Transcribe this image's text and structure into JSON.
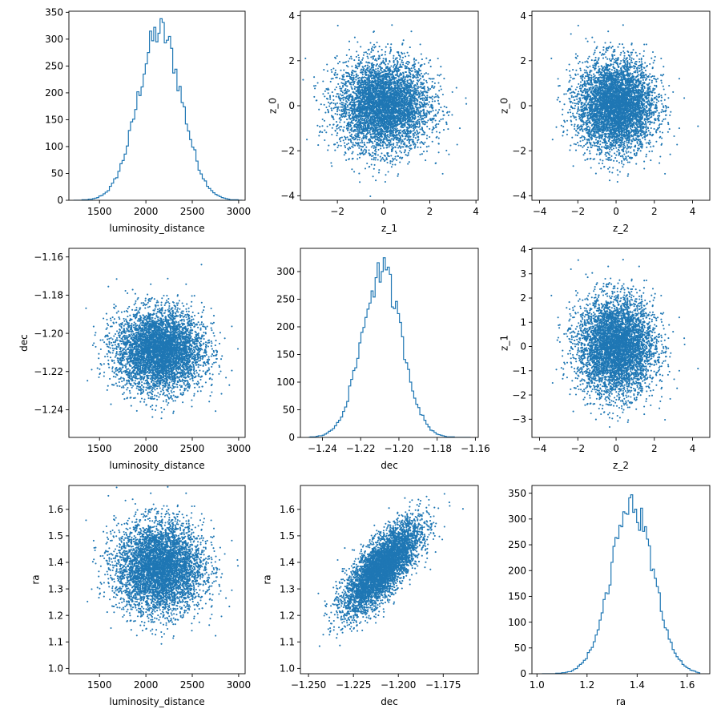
{
  "chart_data": [
    {
      "id": "p00",
      "type": "histogram",
      "xlabel": "luminosity_distance",
      "ylabel": "",
      "xlim": [
        1170,
        3070
      ],
      "ylim": [
        0,
        352
      ],
      "xticks": [
        1500,
        2000,
        2500,
        3000
      ],
      "xtick_labels": [
        "1500",
        "2000",
        "2500",
        "3000"
      ],
      "yticks": [
        0,
        50,
        100,
        150,
        200,
        250,
        300,
        350
      ],
      "ytick_labels": [
        "0",
        "50",
        "100",
        "150",
        "200",
        "250",
        "300",
        "350"
      ],
      "hist": {
        "bins": 80,
        "mean": 2150,
        "sd": 235,
        "peak": 338,
        "range": [
          1220,
          3040
        ]
      }
    },
    {
      "id": "p01",
      "type": "scatter",
      "xlabel": "z_1",
      "ylabel": "z_0",
      "xlim": [
        -3.6,
        4.1
      ],
      "ylim": [
        -4.2,
        4.2
      ],
      "xticks": [
        -2,
        0,
        2,
        4
      ],
      "xtick_labels": [
        "−2",
        "0",
        "2",
        "4"
      ],
      "yticks": [
        -4,
        -2,
        0,
        2,
        4
      ],
      "ytick_labels": [
        "−4",
        "−2",
        "0",
        "2",
        "4"
      ],
      "scatter": {
        "n": 5000,
        "mean_x": 0,
        "sd_x": 1,
        "mean_y": 0,
        "sd_y": 1,
        "rho": 0
      }
    },
    {
      "id": "p02",
      "type": "scatter",
      "xlabel": "z_2",
      "ylabel": "z_0",
      "xlim": [
        -4.4,
        4.9
      ],
      "ylim": [
        -4.2,
        4.2
      ],
      "xticks": [
        -4,
        -2,
        0,
        2,
        4
      ],
      "xtick_labels": [
        "−4",
        "−2",
        "0",
        "2",
        "4"
      ],
      "yticks": [
        -4,
        -2,
        0,
        2,
        4
      ],
      "ytick_labels": [
        "−4",
        "−2",
        "0",
        "2",
        "4"
      ],
      "scatter": {
        "n": 5000,
        "mean_x": 0,
        "sd_x": 1,
        "mean_y": 0,
        "sd_y": 1,
        "rho": 0
      }
    },
    {
      "id": "p10",
      "type": "scatter",
      "xlabel": "luminosity_distance",
      "ylabel": "dec",
      "xlim": [
        1170,
        3070
      ],
      "ylim": [
        -1.2545,
        -1.1555
      ],
      "xticks": [
        1500,
        2000,
        2500,
        3000
      ],
      "xtick_labels": [
        "1500",
        "2000",
        "2500",
        "3000"
      ],
      "yticks": [
        -1.24,
        -1.22,
        -1.2,
        -1.18,
        -1.16
      ],
      "ytick_labels": [
        "−1.24",
        "−1.22",
        "−1.20",
        "−1.18",
        "−1.16"
      ],
      "scatter": {
        "n": 5000,
        "mean_x": 2150,
        "sd_x": 235,
        "mean_y": -1.209,
        "sd_y": 0.0105,
        "rho": 0
      }
    },
    {
      "id": "p11",
      "type": "histogram",
      "xlabel": "dec",
      "ylabel": "",
      "xlim": [
        -1.2515,
        -1.1585
      ],
      "ylim": [
        0,
        342
      ],
      "xticks": [
        -1.24,
        -1.22,
        -1.2,
        -1.18,
        -1.16
      ],
      "xtick_labels": [
        "−1.24",
        "−1.22",
        "−1.20",
        "−1.18",
        "−1.16"
      ],
      "yticks": [
        0,
        50,
        100,
        150,
        200,
        250,
        300
      ],
      "ytick_labels": [
        "0",
        "50",
        "100",
        "150",
        "200",
        "250",
        "300"
      ],
      "hist": {
        "bins": 80,
        "mean": -1.209,
        "sd": 0.0105,
        "peak": 325,
        "range": [
          -1.2475,
          -1.1625
        ]
      }
    },
    {
      "id": "p12",
      "type": "scatter",
      "xlabel": "z_2",
      "ylabel": "z_1",
      "xlim": [
        -4.4,
        4.9
      ],
      "ylim": [
        -3.75,
        4.05
      ],
      "xticks": [
        -4,
        -2,
        0,
        2,
        4
      ],
      "xtick_labels": [
        "−4",
        "−2",
        "0",
        "2",
        "4"
      ],
      "yticks": [
        -3,
        -2,
        -1,
        0,
        1,
        2,
        3,
        4
      ],
      "ytick_labels": [
        "−3",
        "−2",
        "−1",
        "0",
        "1",
        "2",
        "3",
        "4"
      ],
      "scatter": {
        "n": 5000,
        "mean_x": 0,
        "sd_x": 1,
        "mean_y": 0,
        "sd_y": 1,
        "rho": 0
      }
    },
    {
      "id": "p20",
      "type": "scatter",
      "xlabel": "luminosity_distance",
      "ylabel": "ra",
      "xlim": [
        1170,
        3070
      ],
      "ylim": [
        0.98,
        1.69
      ],
      "xticks": [
        1500,
        2000,
        2500,
        3000
      ],
      "xtick_labels": [
        "1500",
        "2000",
        "2500",
        "3000"
      ],
      "yticks": [
        1.0,
        1.1,
        1.2,
        1.3,
        1.4,
        1.5,
        1.6
      ],
      "ytick_labels": [
        "1.0",
        "1.1",
        "1.2",
        "1.3",
        "1.4",
        "1.5",
        "1.6"
      ],
      "scatter": {
        "n": 5000,
        "mean_x": 2150,
        "sd_x": 235,
        "mean_y": 1.38,
        "sd_y": 0.085,
        "rho": 0
      }
    },
    {
      "id": "p21",
      "type": "scatter",
      "xlabel": "dec",
      "ylabel": "ra",
      "xlim": [
        -1.2545,
        -1.1555
      ],
      "ylim": [
        0.98,
        1.69
      ],
      "xticks": [
        -1.25,
        -1.225,
        -1.2,
        -1.175
      ],
      "xtick_labels": [
        "−1.250",
        "−1.225",
        "−1.200",
        "−1.175"
      ],
      "yticks": [
        1.0,
        1.1,
        1.2,
        1.3,
        1.4,
        1.5,
        1.6
      ],
      "ytick_labels": [
        "1.0",
        "1.1",
        "1.2",
        "1.3",
        "1.4",
        "1.5",
        "1.6"
      ],
      "scatter": {
        "n": 5000,
        "mean_x": -1.209,
        "sd_x": 0.0105,
        "mean_y": 1.38,
        "sd_y": 0.085,
        "rho": 0.75
      }
    },
    {
      "id": "p22",
      "type": "histogram",
      "xlabel": "ra",
      "ylabel": "",
      "xlim": [
        0.98,
        1.69
      ],
      "ylim": [
        0,
        365
      ],
      "xticks": [
        1.0,
        1.2,
        1.4,
        1.6
      ],
      "xtick_labels": [
        "1.0",
        "1.2",
        "1.4",
        "1.6"
      ],
      "yticks": [
        0,
        50,
        100,
        150,
        200,
        250,
        300,
        350
      ],
      "ytick_labels": [
        "0",
        "50",
        "100",
        "150",
        "200",
        "250",
        "300",
        "350"
      ],
      "hist": {
        "bins": 80,
        "mean": 1.38,
        "sd": 0.085,
        "peak": 347,
        "range": [
          1.02,
          1.65
        ]
      }
    }
  ],
  "colors": {
    "series": "#1f77b4",
    "axes": "#000000"
  }
}
